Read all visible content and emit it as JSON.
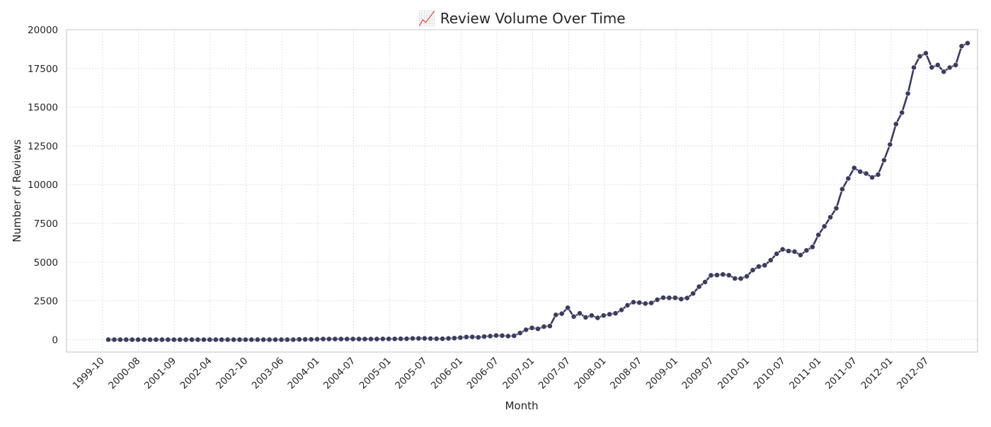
{
  "chart_data": {
    "type": "line",
    "title": "📈 Review Volume Over Time",
    "xlabel": "Month",
    "ylabel": "Number of Reviews",
    "ylim": [
      -800,
      20000
    ],
    "yticks": [
      0,
      2500,
      5000,
      7500,
      10000,
      12500,
      15000,
      17500,
      20000
    ],
    "x_tick_labels": [
      "1999-10",
      "2000-08",
      "2001-09",
      "2002-04",
      "2002-10",
      "2003-06",
      "2004-01",
      "2004-07",
      "2005-01",
      "2005-07",
      "2006-01",
      "2006-07",
      "2007-01",
      "2007-07",
      "2008-01",
      "2008-07",
      "2009-01",
      "2009-07",
      "2010-01",
      "2010-07",
      "2011-01",
      "2011-07",
      "2012-01",
      "2012-07"
    ],
    "grid": true,
    "line_color": "#3b3b5c",
    "series": [
      {
        "values": [
          0,
          0,
          0,
          0,
          0,
          0,
          0,
          0,
          0,
          0,
          0,
          0,
          0,
          0,
          0,
          0,
          0,
          0,
          0,
          0,
          0,
          0,
          0,
          0,
          0,
          0,
          0,
          0,
          0,
          0,
          0,
          0,
          20,
          20,
          20,
          30,
          40,
          40,
          40,
          40,
          40,
          40,
          40,
          40,
          40,
          40,
          50,
          50,
          50,
          60,
          60,
          80,
          80,
          80,
          70,
          60,
          60,
          80,
          100,
          130,
          170,
          180,
          150,
          200,
          230,
          270,
          260,
          230,
          250,
          430,
          640,
          760,
          700,
          840,
          880,
          1600,
          1680,
          2060,
          1490,
          1700,
          1440,
          1560,
          1410,
          1560,
          1640,
          1700,
          1920,
          2220,
          2420,
          2390,
          2330,
          2370,
          2580,
          2710,
          2700,
          2700,
          2620,
          2690,
          2980,
          3420,
          3720,
          4150,
          4170,
          4210,
          4160,
          3950,
          3940,
          4090,
          4490,
          4720,
          4800,
          5130,
          5540,
          5830,
          5720,
          5680,
          5460,
          5760,
          5980,
          6760,
          7310,
          7900,
          8480,
          9710,
          10400,
          11080,
          10840,
          10720,
          10470,
          10650,
          11580,
          12590,
          13910,
          14650,
          15880,
          17560,
          18280,
          18480,
          17570,
          17720,
          17290,
          17560,
          17720,
          18940,
          19130
        ]
      }
    ]
  }
}
